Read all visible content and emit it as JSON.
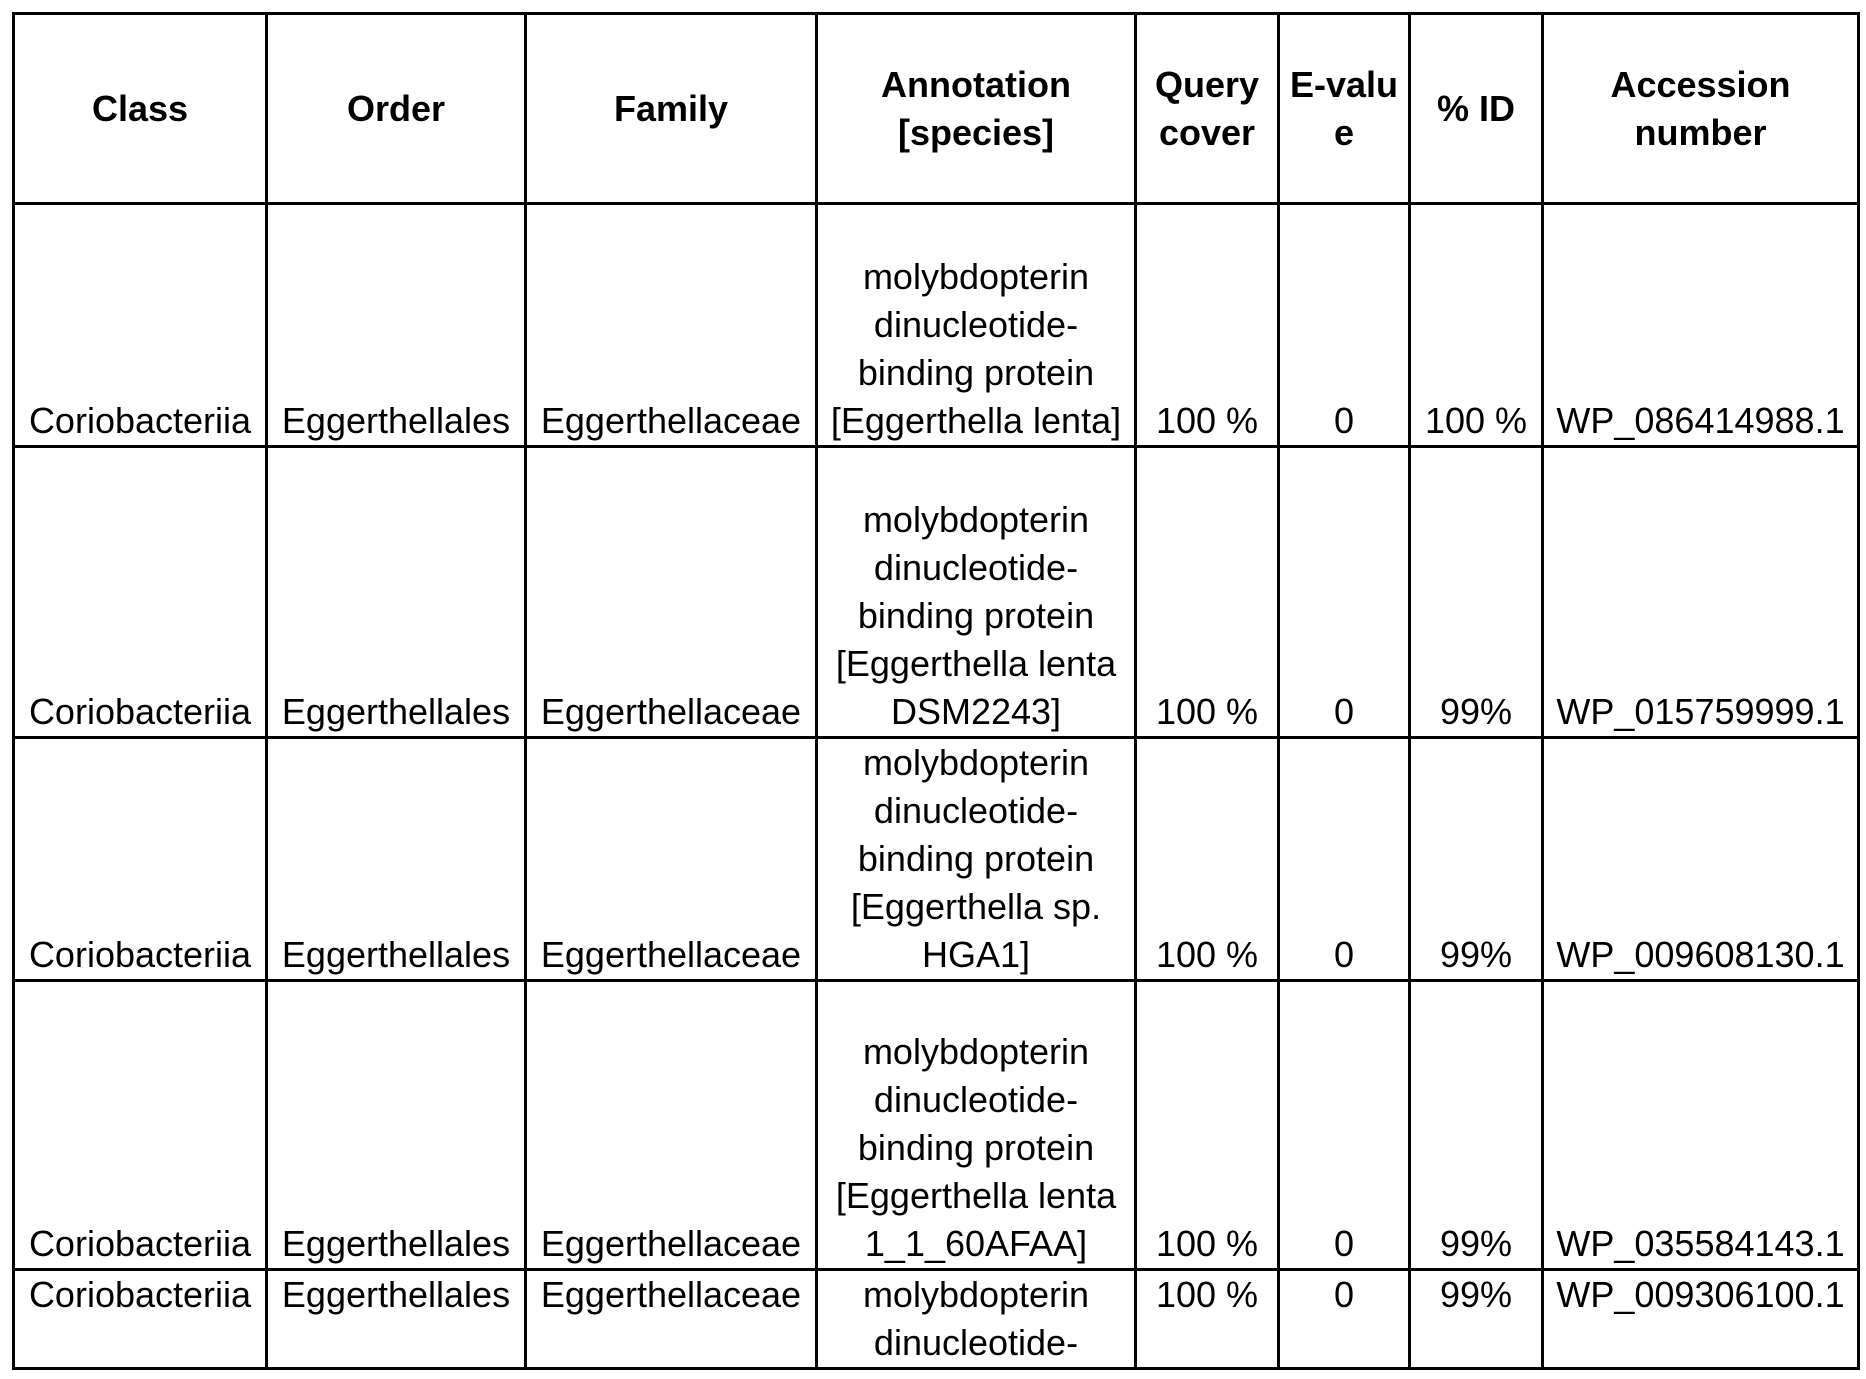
{
  "headers": [
    "Class",
    "Order",
    "Family",
    "Annotation [species]",
    "Query cover",
    "E-value",
    "% ID",
    "Accession number"
  ],
  "rows": [
    {
      "class": "Coriobacteriia",
      "order": "Eggerthellales",
      "family": "Eggerthellaceae",
      "annotation": "molybdopterin dinucleotide-binding protein [Eggerthella lenta]",
      "query_cover": "100 %",
      "evalue": "0",
      "pid": "100 %",
      "accession": "WP_086414988.1"
    },
    {
      "class": "Coriobacteriia",
      "order": "Eggerthellales",
      "family": "Eggerthellaceae",
      "annotation": "molybdopterin dinucleotide-binding protein [Eggerthella lenta DSM2243]",
      "query_cover": "100 %",
      "evalue": "0",
      "pid": "99%",
      "accession": "WP_015759999.1"
    },
    {
      "class": "Coriobacteriia",
      "order": "Eggerthellales",
      "family": "Eggerthellaceae",
      "annotation": "molybdopterin dinucleotide-binding protein [Eggerthella sp. HGA1]",
      "query_cover": "100 %",
      "evalue": "0",
      "pid": "99%",
      "accession": "WP_009608130.1"
    },
    {
      "class": "Coriobacteriia",
      "order": "Eggerthellales",
      "family": "Eggerthellaceae",
      "annotation": "molybdopterin dinucleotide-binding protein [Eggerthella lenta 1_1_60AFAA]",
      "query_cover": "100 %",
      "evalue": "0",
      "pid": "99%",
      "accession": "WP_035584143.1"
    },
    {
      "class": "Coriobacteriia",
      "order": "Eggerthellales",
      "family": "Eggerthellaceae",
      "annotation": "molybdopterin dinucleotide-",
      "query_cover": "100 %",
      "evalue": "0",
      "pid": "99%",
      "accession": "WP_009306100.1"
    }
  ]
}
